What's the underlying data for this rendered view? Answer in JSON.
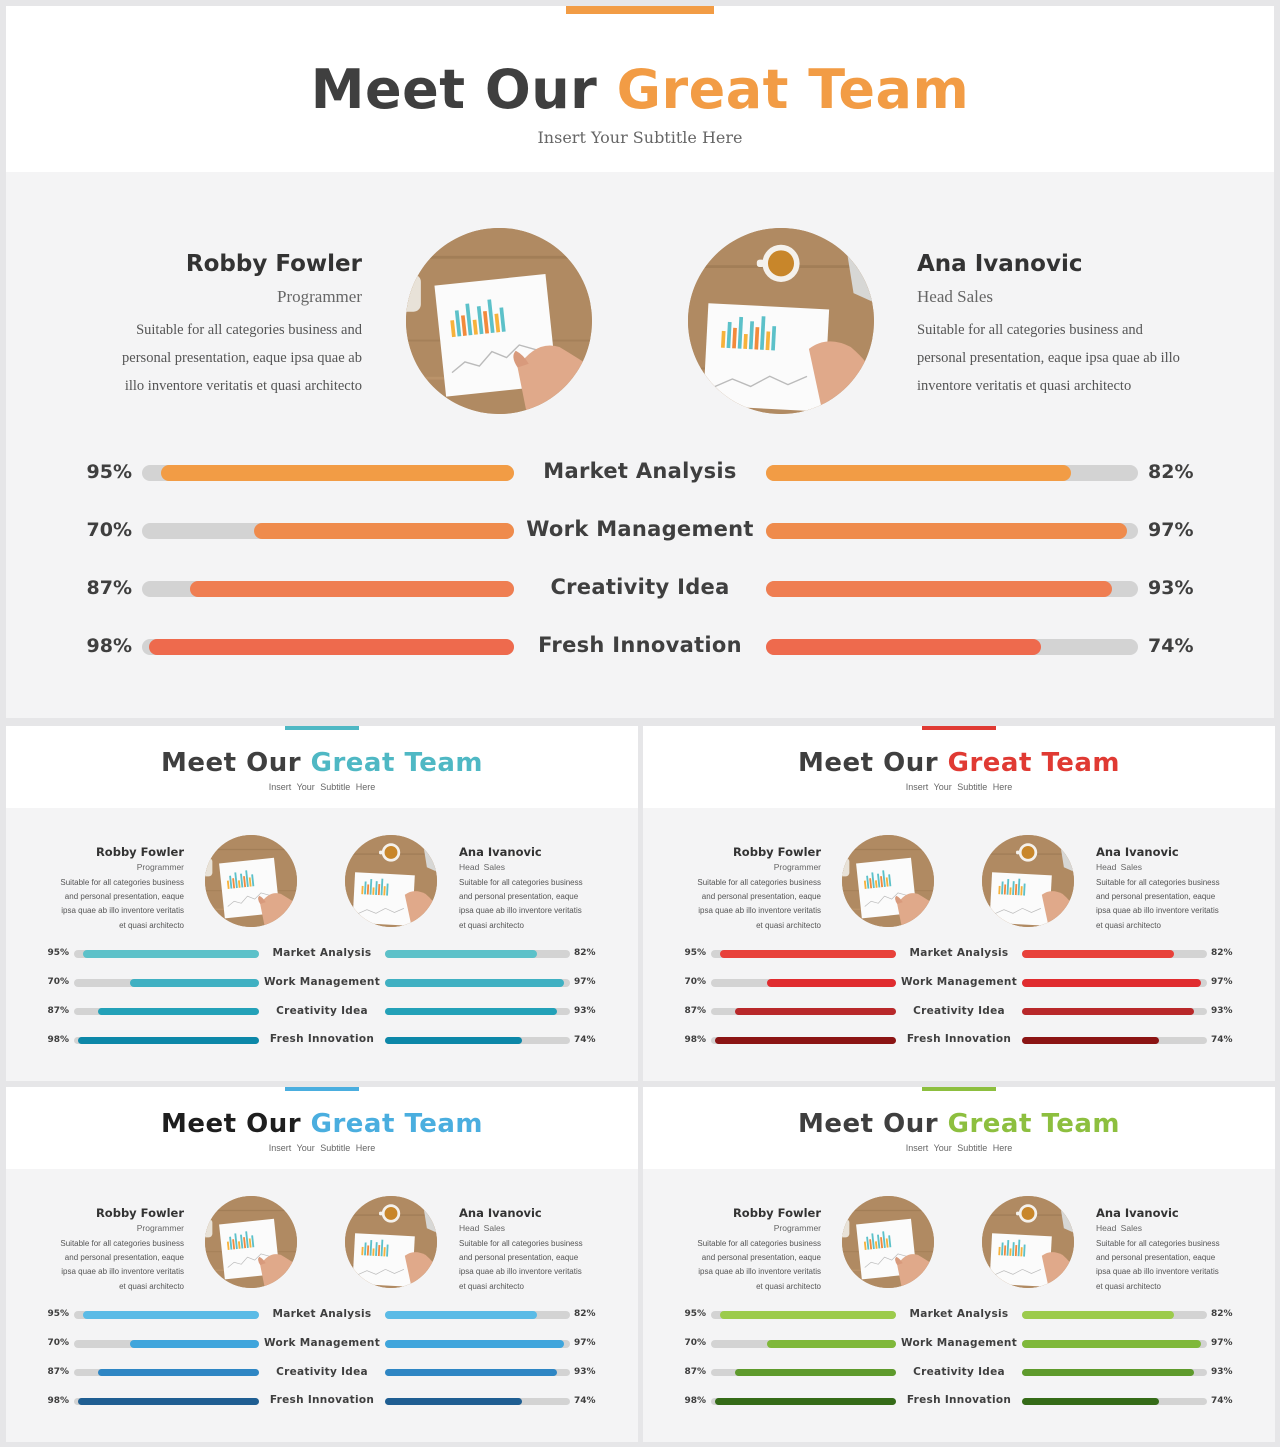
{
  "slides": [
    {
      "title_main": "Meet Our",
      "title_highlight": "Great Team",
      "subtitle": "Insert Your Subtitle Here",
      "accent_color": "#f29c45",
      "title_color": "#3f3f3f",
      "bar_colors": [
        "#f29c45",
        "#ef8b4c",
        "#ef7e52",
        "#ee6a4d"
      ]
    },
    {
      "title_main": "Meet Our",
      "title_highlight": "Great Team",
      "subtitle": "Insert Your Subtitle Here",
      "accent_color": "#4fb8c4",
      "title_color": "#3f3f3f",
      "bar_colors": [
        "#5cc1c9",
        "#3fb0c2",
        "#23a1b8",
        "#0c87a8"
      ]
    },
    {
      "title_main": "Meet Our",
      "title_highlight": "Great Team",
      "subtitle": "Insert Your Subtitle Here",
      "accent_color": "#e03a33",
      "title_color": "#3f3f3f",
      "bar_colors": [
        "#e8413a",
        "#e02c2f",
        "#b8282a",
        "#8b1414"
      ]
    },
    {
      "title_main": "Meet Our",
      "title_highlight": "Great Team",
      "subtitle": "Insert Your Subtitle Here",
      "accent_color": "#4aaedf",
      "title_color": "#1e1e1e",
      "bar_colors": [
        "#5bbbe6",
        "#3fa5dc",
        "#2e86c4",
        "#1f5e92"
      ]
    },
    {
      "title_main": "Meet Our",
      "title_highlight": "Great Team",
      "subtitle": "Insert Your Subtitle Here",
      "accent_color": "#8dbf3f",
      "title_color": "#3f3f3f",
      "bar_colors": [
        "#9ccb4c",
        "#7fb83a",
        "#5e9a2c",
        "#356b18"
      ]
    }
  ],
  "people": [
    {
      "name": "Robby Fowler",
      "role": "Programmer",
      "desc_lines": [
        "Suitable for all categories business and",
        "personal presentation, eaque ipsa quae ab",
        "illo inventore veritatis et quasi architecto"
      ],
      "desc_lines_small": [
        "Suitable for all categories business",
        "and personal presentation, eaque",
        "ipsa quae ab illo inventore veritatis",
        "et quasi architecto"
      ]
    },
    {
      "name": "Ana Ivanovic",
      "role": "Head Sales",
      "desc_lines": [
        "Suitable for all categories business and",
        "personal presentation, eaque ipsa quae ab illo",
        "inventore veritatis et quasi architecto"
      ],
      "desc_lines_small": [
        "Suitable for all categories business",
        "and personal presentation, eaque",
        "ipsa quae ab illo inventore veritatis",
        "et quasi architecto"
      ]
    }
  ],
  "skills": [
    {
      "name": "Market Analysis",
      "left_pct": 95,
      "left_label": "95%",
      "right_pct": 82,
      "right_label": "82%"
    },
    {
      "name": "Work Management",
      "left_pct": 70,
      "left_label": "70%",
      "right_pct": 97,
      "right_label": "97%"
    },
    {
      "name": "Creativity Idea",
      "left_pct": 87,
      "left_label": "87%",
      "right_pct": 93,
      "right_label": "93%"
    },
    {
      "name": "Fresh Innovation",
      "left_pct": 98,
      "left_label": "98%",
      "right_pct": 74,
      "right_label": "74%"
    }
  ]
}
